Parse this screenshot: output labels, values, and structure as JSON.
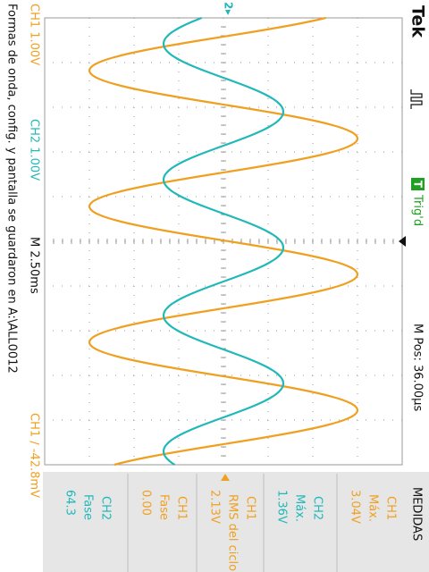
{
  "header": {
    "brand": "Tek",
    "trigger_icon": "T",
    "trigger_status": "Trig'd",
    "horizontal_position": "M Pos: 36.00µs"
  },
  "status": {
    "ch1_scale": "CH1 1.00V",
    "ch2_scale": "CH2 1.00V",
    "timebase": "M 2.50ms",
    "trigger": "CH1 ∕ -42.8mV",
    "message": "Formas de onda, config. y pantalla se guardaron en A:\\ALL0012"
  },
  "markers": {
    "ch2": "2"
  },
  "measurements": {
    "title": "MEDIDAS",
    "items": [
      {
        "source": "CH1",
        "type": "Máx.",
        "value": "3.04V"
      },
      {
        "source": "CH2",
        "type": "Máx.",
        "value": "1.36V"
      },
      {
        "source": "CH1",
        "type": "RMS del ciclo",
        "value": "2.13V"
      },
      {
        "source": "CH1",
        "type": "Fase",
        "value": "0.00"
      },
      {
        "source": "CH2",
        "type": "Fase",
        "value": "64.3"
      }
    ]
  }
}
